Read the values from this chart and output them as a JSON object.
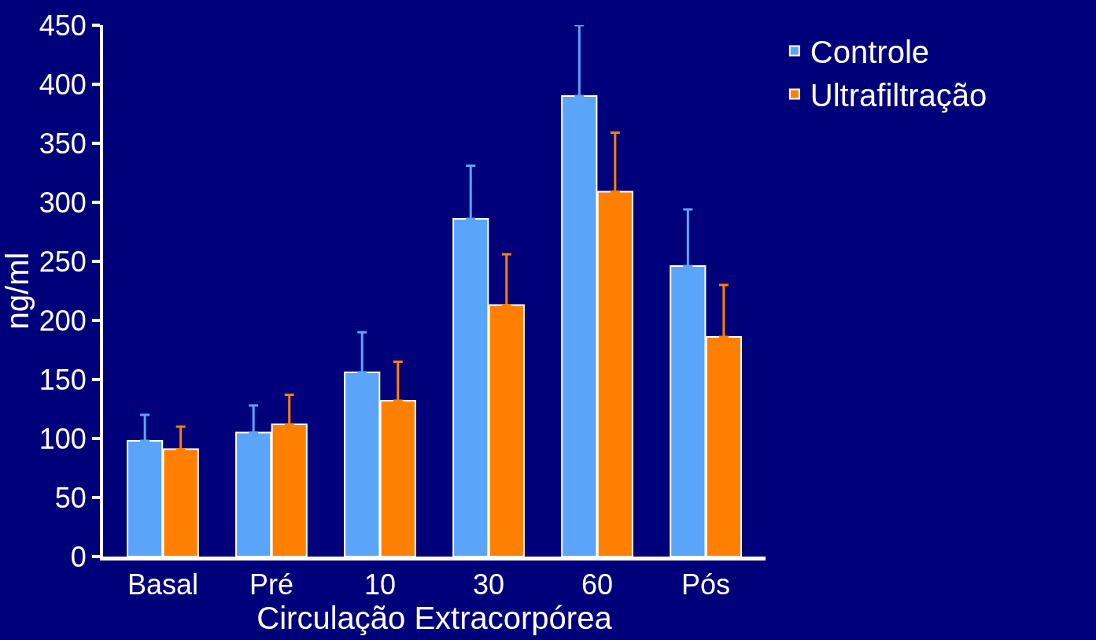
{
  "chart_data": {
    "type": "bar",
    "xlabel": "Circulação Extracorpórea",
    "ylabel": "ng/ml",
    "categories": [
      "Basal",
      "Pré",
      "10",
      "30",
      "60",
      "Pós"
    ],
    "series": [
      {
        "name": "Controle",
        "color": "#5aa5fa",
        "values": [
          98,
          105,
          156,
          286,
          390,
          246
        ],
        "errors": [
          [
            98,
            120
          ],
          [
            105,
            128
          ],
          [
            156,
            190
          ],
          [
            286,
            331
          ],
          [
            390,
            450
          ],
          [
            246,
            294
          ]
        ]
      },
      {
        "name": "Ultrafiltração",
        "color": "#ff8000",
        "values": [
          91,
          112,
          132,
          213,
          309,
          186
        ],
        "errors": [
          [
            91,
            110
          ],
          [
            112,
            137
          ],
          [
            132,
            165
          ],
          [
            213,
            256
          ],
          [
            309,
            359
          ],
          [
            186,
            230
          ]
        ]
      }
    ],
    "ylim": [
      0,
      450
    ],
    "yticks": [
      0,
      50,
      100,
      150,
      200,
      250,
      300,
      350,
      400,
      450
    ],
    "grid": false,
    "legend": "top right"
  }
}
